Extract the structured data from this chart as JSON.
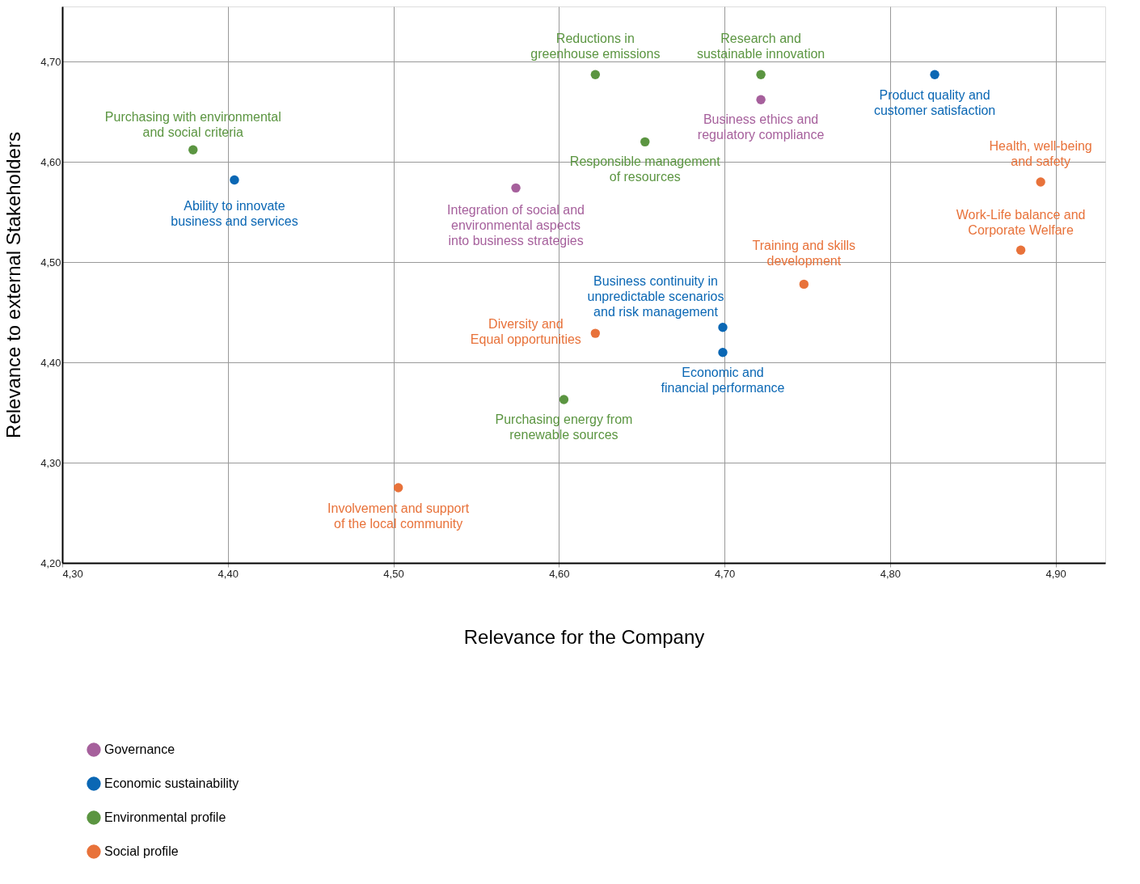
{
  "chart_data": {
    "type": "scatter",
    "xlabel": "Relevance for the Company",
    "ylabel": "Relevance to  external Stakeholders",
    "xlim": [
      4.3,
      4.93
    ],
    "ylim": [
      4.2,
      4.755
    ],
    "xticks": [
      {
        "value": 4.3,
        "label": "4,30"
      },
      {
        "value": 4.4,
        "label": "4,40"
      },
      {
        "value": 4.5,
        "label": "4,50"
      },
      {
        "value": 4.6,
        "label": "4,60"
      },
      {
        "value": 4.7,
        "label": "4,70"
      },
      {
        "value": 4.8,
        "label": "4,80"
      },
      {
        "value": 4.9,
        "label": "4,90"
      }
    ],
    "yticks": [
      {
        "value": 4.2,
        "label": "4,20"
      },
      {
        "value": 4.3,
        "label": "4,30"
      },
      {
        "value": 4.4,
        "label": "4,40"
      },
      {
        "value": 4.5,
        "label": "4,50"
      },
      {
        "value": 4.6,
        "label": "4,60"
      },
      {
        "value": 4.7,
        "label": "4,70"
      }
    ],
    "grid": true,
    "legend": "bottom left",
    "marker": "circle",
    "series": [
      {
        "name": "Governance",
        "color": "#a6609c",
        "x": [
          4.722,
          4.574
        ],
        "values": [
          4.662,
          4.574
        ],
        "value_labels": [
          "Business ethics and\nregulatory compliance",
          "Integration of social and\nenvironmental aspects\ninto business strategies"
        ]
      },
      {
        "name": "Economic sustainability",
        "color": "#0a67b4",
        "x": [
          4.404,
          4.827,
          4.699,
          4.699
        ],
        "values": [
          4.582,
          4.687,
          4.435,
          4.41
        ],
        "value_labels": [
          "Ability to innovate\nbusiness and services",
          "Product quality and\ncustomer satisfaction",
          "Business continuity in\nunpredictable scenarios\nand risk management",
          "Economic and\nfinancial performance"
        ]
      },
      {
        "name": "Environmental profile",
        "color": "#5b9541",
        "x": [
          4.379,
          4.622,
          4.722,
          4.652,
          4.603
        ],
        "values": [
          4.612,
          4.687,
          4.687,
          4.62,
          4.363
        ],
        "value_labels": [
          "Purchasing with environmental\nand social criteria",
          "Reductions in\ngreenhouse emissions",
          "Research and\nsustainable innovation",
          "Responsible management\nof resources",
          "Purchasing energy from\nrenewable sources"
        ]
      },
      {
        "name": "Social profile",
        "color": "#e8723a",
        "x": [
          4.891,
          4.879,
          4.748,
          4.622,
          4.503
        ],
        "values": [
          4.58,
          4.512,
          4.478,
          4.429,
          4.275
        ],
        "value_labels": [
          "Health, well-being\nand safety",
          "Work-Life balance and\nCorporate Welfare",
          "Training and skills\ndevelopment",
          "Diversity and\nEqual opportunities",
          "Involvement and support\nof the local community"
        ]
      }
    ]
  }
}
